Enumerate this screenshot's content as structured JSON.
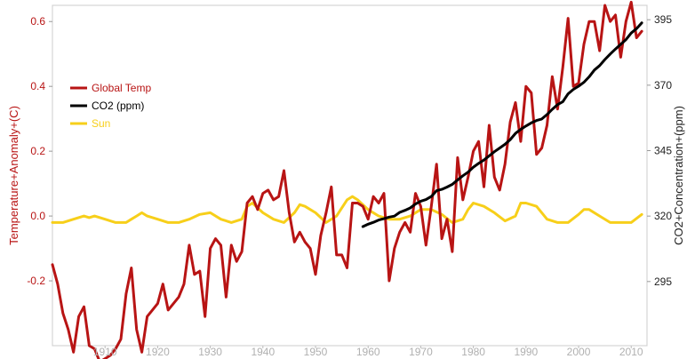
{
  "chart_data": {
    "type": "line",
    "title": "",
    "xlabel": "",
    "ylabel_left": "Temperature+Anomaly+(C)",
    "ylabel_right": "CO2+Concentration+(ppm)",
    "xlim": [
      1900,
      2013
    ],
    "ylim_left": [
      -0.4,
      0.65
    ],
    "ylim_right": [
      270.5,
      400.5
    ],
    "x_ticks": [
      1910,
      1920,
      1930,
      1940,
      1950,
      1960,
      1970,
      1980,
      1990,
      2000,
      2010
    ],
    "y_ticks_left": [
      -0.2,
      0.0,
      0.2,
      0.4,
      0.6
    ],
    "y_ticks_left_labels": [
      "-0.2",
      "0.0",
      "0.2",
      "0.4",
      "0.6"
    ],
    "y_ticks_right": [
      295,
      320,
      345,
      370,
      395
    ],
    "grid": false,
    "legend_position": "top-left",
    "series": [
      {
        "name": "Global Temp",
        "axis": "left",
        "color": "#b81414",
        "x": [
          1900,
          1901,
          1902,
          1903,
          1904,
          1905,
          1906,
          1907,
          1908,
          1909,
          1910,
          1911,
          1912,
          1913,
          1914,
          1915,
          1916,
          1917,
          1918,
          1919,
          1920,
          1921,
          1922,
          1923,
          1924,
          1925,
          1926,
          1927,
          1928,
          1929,
          1930,
          1931,
          1932,
          1933,
          1934,
          1935,
          1936,
          1937,
          1938,
          1939,
          1940,
          1941,
          1942,
          1943,
          1944,
          1945,
          1946,
          1947,
          1948,
          1949,
          1950,
          1951,
          1952,
          1953,
          1954,
          1955,
          1956,
          1957,
          1958,
          1959,
          1960,
          1961,
          1962,
          1963,
          1964,
          1965,
          1966,
          1967,
          1968,
          1969,
          1970,
          1971,
          1972,
          1973,
          1974,
          1975,
          1976,
          1977,
          1978,
          1979,
          1980,
          1981,
          1982,
          1983,
          1984,
          1985,
          1986,
          1987,
          1988,
          1989,
          1990,
          1991,
          1992,
          1993,
          1994,
          1995,
          1996,
          1997,
          1998,
          1999,
          2000,
          2001,
          2002,
          2003,
          2004,
          2005,
          2006,
          2007,
          2008,
          2009,
          2010,
          2011,
          2012
        ],
        "values": [
          -0.15,
          -0.21,
          -0.3,
          -0.35,
          -0.42,
          -0.31,
          -0.28,
          -0.4,
          -0.41,
          -0.45,
          -0.44,
          -0.43,
          -0.41,
          -0.38,
          -0.24,
          -0.16,
          -0.35,
          -0.42,
          -0.31,
          -0.29,
          -0.27,
          -0.21,
          -0.29,
          -0.27,
          -0.25,
          -0.21,
          -0.09,
          -0.18,
          -0.17,
          -0.31,
          -0.1,
          -0.07,
          -0.09,
          -0.25,
          -0.09,
          -0.14,
          -0.11,
          0.04,
          0.06,
          0.02,
          0.07,
          0.08,
          0.05,
          0.06,
          0.14,
          0.01,
          -0.08,
          -0.05,
          -0.08,
          -0.1,
          -0.18,
          -0.06,
          0.01,
          0.09,
          -0.12,
          -0.12,
          -0.16,
          0.04,
          0.04,
          0.03,
          -0.01,
          0.06,
          0.04,
          0.07,
          -0.2,
          -0.1,
          -0.05,
          -0.02,
          -0.05,
          0.07,
          0.03,
          -0.09,
          0.03,
          0.16,
          -0.07,
          -0.01,
          -0.11,
          0.18,
          0.05,
          0.12,
          0.2,
          0.23,
          0.09,
          0.28,
          0.12,
          0.08,
          0.16,
          0.29,
          0.35,
          0.23,
          0.4,
          0.38,
          0.19,
          0.21,
          0.28,
          0.43,
          0.33,
          0.46,
          0.61,
          0.4,
          0.41,
          0.53,
          0.6,
          0.6,
          0.51,
          0.65,
          0.6,
          0.62,
          0.49,
          0.6,
          0.66,
          0.55,
          0.57
        ]
      },
      {
        "name": "CO2 (ppm)",
        "axis": "right",
        "color": "#000000",
        "x": [
          1959,
          1960,
          1961,
          1962,
          1963,
          1964,
          1965,
          1966,
          1967,
          1968,
          1969,
          1970,
          1971,
          1972,
          1973,
          1974,
          1975,
          1976,
          1977,
          1978,
          1979,
          1980,
          1981,
          1982,
          1983,
          1984,
          1985,
          1986,
          1987,
          1988,
          1989,
          1990,
          1991,
          1992,
          1993,
          1994,
          1995,
          1996,
          1997,
          1998,
          1999,
          2000,
          2001,
          2002,
          2003,
          2004,
          2005,
          2006,
          2007,
          2008,
          2009,
          2010,
          2011,
          2012
        ],
        "values": [
          316.0,
          316.9,
          317.6,
          318.5,
          319.0,
          319.6,
          320.0,
          321.4,
          322.2,
          323.1,
          324.6,
          325.7,
          326.3,
          327.5,
          329.7,
          330.2,
          331.1,
          332.1,
          333.8,
          335.4,
          336.8,
          338.7,
          340.1,
          341.4,
          343.0,
          344.6,
          346.0,
          347.4,
          349.2,
          351.6,
          353.1,
          354.4,
          355.6,
          356.5,
          357.1,
          358.8,
          360.8,
          362.6,
          363.7,
          366.7,
          368.4,
          369.6,
          371.1,
          373.2,
          375.8,
          377.5,
          379.8,
          381.9,
          383.8,
          385.6,
          387.4,
          389.9,
          391.6,
          393.8
        ]
      },
      {
        "name": "Sun",
        "axis": "left",
        "color": "#f7cf1a",
        "x": [
          1900,
          1902,
          1904,
          1906,
          1907,
          1908,
          1910,
          1912,
          1914,
          1915,
          1916,
          1917,
          1918,
          1920,
          1922,
          1924,
          1926,
          1928,
          1930,
          1932,
          1934,
          1936,
          1937,
          1938,
          1940,
          1942,
          1944,
          1946,
          1947,
          1948,
          1950,
          1952,
          1954,
          1956,
          1957,
          1958,
          1960,
          1962,
          1964,
          1966,
          1968,
          1970,
          1972,
          1974,
          1976,
          1978,
          1979,
          1980,
          1982,
          1984,
          1986,
          1988,
          1989,
          1990,
          1992,
          1994,
          1996,
          1998,
          2000,
          2001,
          2002,
          2004,
          2006,
          2008,
          2010,
          2012
        ],
        "values": [
          -0.02,
          -0.02,
          -0.01,
          0.0,
          -0.005,
          0.0,
          -0.01,
          -0.02,
          -0.02,
          -0.01,
          0.0,
          0.01,
          0.0,
          -0.01,
          -0.02,
          -0.02,
          -0.01,
          0.005,
          0.01,
          -0.01,
          -0.02,
          -0.01,
          0.03,
          0.04,
          0.01,
          -0.01,
          -0.02,
          0.01,
          0.035,
          0.03,
          0.01,
          -0.02,
          0.0,
          0.05,
          0.06,
          0.05,
          0.02,
          0.0,
          -0.01,
          -0.01,
          0.0,
          0.02,
          0.02,
          0.005,
          -0.02,
          -0.01,
          0.02,
          0.04,
          0.03,
          0.01,
          -0.015,
          0.0,
          0.04,
          0.04,
          0.03,
          -0.01,
          -0.02,
          -0.02,
          0.005,
          0.02,
          0.02,
          0.0,
          -0.02,
          -0.02,
          -0.02,
          0.005
        ]
      }
    ]
  }
}
